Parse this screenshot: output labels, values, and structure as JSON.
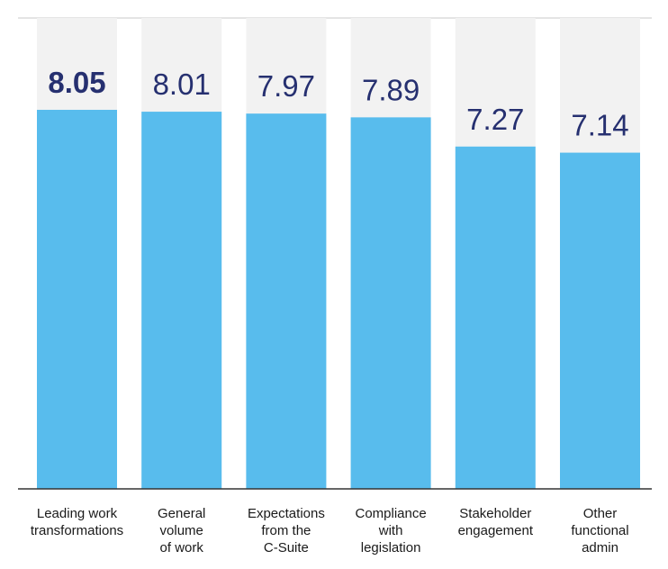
{
  "chart_data": {
    "type": "bar",
    "categories": [
      [
        "Leading work",
        "transformations"
      ],
      [
        "General",
        "volume",
        "of work"
      ],
      [
        "Expectations",
        "from the",
        "C-Suite"
      ],
      [
        "Compliance",
        "with",
        "legislation"
      ],
      [
        "Stakeholder",
        "engagement"
      ],
      [
        "Other",
        "functional",
        "admin"
      ]
    ],
    "values": [
      8.05,
      8.01,
      7.97,
      7.89,
      7.27,
      7.14
    ],
    "value_labels": [
      "8.05",
      "8.01",
      "7.97",
      "7.89",
      "7.27",
      "7.14"
    ],
    "highlighted_index": 0,
    "ylim": [
      0,
      10
    ],
    "grid": false,
    "legend": "none",
    "colors": {
      "bar": "#58bced",
      "track": "#f2f2f2",
      "value_text": "#263070",
      "axis_line": "#333333",
      "category_text": "#1a1a1a"
    }
  }
}
